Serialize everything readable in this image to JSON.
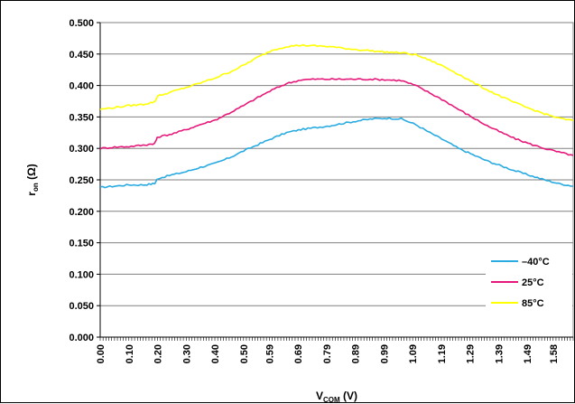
{
  "chart_data": {
    "type": "line",
    "title": "",
    "xlabel": {
      "main": "V",
      "sub": "COM",
      "suffix": " (V)"
    },
    "ylabel": {
      "main": "r",
      "sub": "on",
      "suffix": " (Ω)"
    },
    "xlim": [
      0,
      1.65
    ],
    "ylim": [
      0,
      0.5
    ],
    "y_ticks": [
      "0.000",
      "0.050",
      "0.100",
      "0.150",
      "0.200",
      "0.250",
      "0.300",
      "0.350",
      "0.400",
      "0.450",
      "0.500"
    ],
    "x_ticks": [
      {
        "value": 0.0,
        "label": "0.00"
      },
      {
        "value": 0.1,
        "label": "0.10"
      },
      {
        "value": 0.2,
        "label": "0.20"
      },
      {
        "value": 0.3,
        "label": "0.30"
      },
      {
        "value": 0.4,
        "label": "0.40"
      },
      {
        "value": 0.5,
        "label": "0.50"
      },
      {
        "value": 0.59,
        "label": "0.59"
      },
      {
        "value": 0.69,
        "label": "0.69"
      },
      {
        "value": 0.79,
        "label": "0.79"
      },
      {
        "value": 0.89,
        "label": "0.89"
      },
      {
        "value": 0.99,
        "label": "0.99"
      },
      {
        "value": 1.09,
        "label": "1.09"
      },
      {
        "value": 1.19,
        "label": "1.19"
      },
      {
        "value": 1.29,
        "label": "1.29"
      },
      {
        "value": 1.39,
        "label": "1.39"
      },
      {
        "value": 1.49,
        "label": "1.49"
      },
      {
        "value": 1.58,
        "label": "1.58"
      }
    ],
    "grid": "horizontal",
    "legend_position": "bottom-right",
    "series": [
      {
        "name": "–40°C",
        "color": "#29abe2",
        "x": [
          0.0,
          0.05,
          0.1,
          0.15,
          0.19,
          0.2,
          0.25,
          0.3,
          0.35,
          0.4,
          0.45,
          0.5,
          0.55,
          0.6,
          0.65,
          0.7,
          0.75,
          0.8,
          0.85,
          0.9,
          0.95,
          1.0,
          1.05,
          1.1,
          1.15,
          1.2,
          1.25,
          1.3,
          1.35,
          1.4,
          1.45,
          1.5,
          1.55,
          1.6,
          1.65
        ],
        "y": [
          0.238,
          0.24,
          0.242,
          0.242,
          0.244,
          0.252,
          0.258,
          0.263,
          0.27,
          0.276,
          0.285,
          0.296,
          0.306,
          0.316,
          0.325,
          0.33,
          0.333,
          0.336,
          0.34,
          0.344,
          0.347,
          0.348,
          0.347,
          0.338,
          0.325,
          0.313,
          0.3,
          0.29,
          0.28,
          0.272,
          0.264,
          0.257,
          0.25,
          0.244,
          0.24
        ]
      },
      {
        "name": "25°C",
        "color": "#e6197a",
        "x": [
          0.0,
          0.05,
          0.1,
          0.15,
          0.19,
          0.2,
          0.25,
          0.3,
          0.35,
          0.4,
          0.45,
          0.5,
          0.55,
          0.6,
          0.65,
          0.7,
          0.75,
          0.8,
          0.85,
          0.9,
          0.95,
          1.0,
          1.05,
          1.1,
          1.15,
          1.2,
          1.25,
          1.3,
          1.35,
          1.4,
          1.45,
          1.5,
          1.55,
          1.6,
          1.65
        ],
        "y": [
          0.3,
          0.302,
          0.303,
          0.305,
          0.308,
          0.318,
          0.323,
          0.33,
          0.338,
          0.345,
          0.356,
          0.368,
          0.381,
          0.393,
          0.403,
          0.409,
          0.41,
          0.41,
          0.41,
          0.41,
          0.41,
          0.409,
          0.408,
          0.4,
          0.388,
          0.376,
          0.362,
          0.349,
          0.336,
          0.325,
          0.315,
          0.307,
          0.3,
          0.294,
          0.289
        ]
      },
      {
        "name": "85°C",
        "color": "#ffff00",
        "x": [
          0.0,
          0.05,
          0.1,
          0.15,
          0.19,
          0.2,
          0.25,
          0.3,
          0.35,
          0.4,
          0.45,
          0.5,
          0.55,
          0.6,
          0.65,
          0.7,
          0.75,
          0.8,
          0.85,
          0.9,
          0.95,
          1.0,
          1.05,
          1.1,
          1.15,
          1.2,
          1.25,
          1.3,
          1.35,
          1.4,
          1.45,
          1.5,
          1.55,
          1.6,
          1.65
        ],
        "y": [
          0.362,
          0.365,
          0.368,
          0.37,
          0.374,
          0.383,
          0.39,
          0.397,
          0.404,
          0.412,
          0.421,
          0.432,
          0.445,
          0.456,
          0.462,
          0.464,
          0.463,
          0.462,
          0.459,
          0.457,
          0.455,
          0.453,
          0.452,
          0.449,
          0.44,
          0.43,
          0.418,
          0.405,
          0.393,
          0.382,
          0.372,
          0.363,
          0.355,
          0.348,
          0.344
        ]
      }
    ]
  }
}
